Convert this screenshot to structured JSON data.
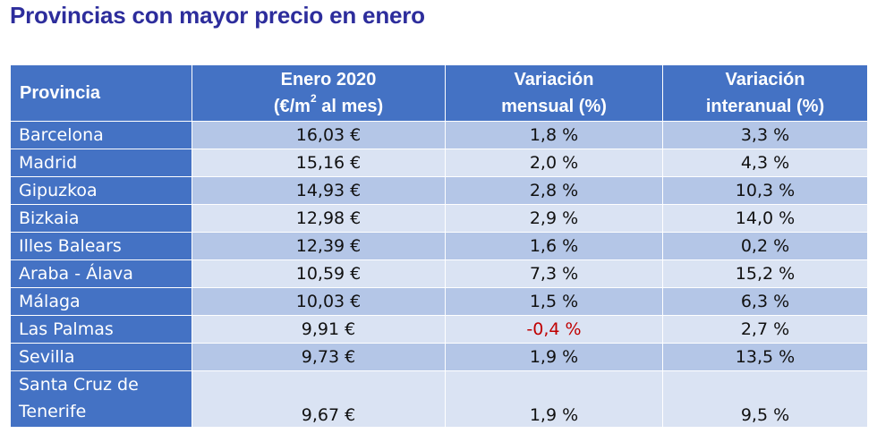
{
  "title": "Provincias con mayor precio en enero",
  "table": {
    "headers": {
      "provincia": "Provincia",
      "enero_line1": "Enero 2020",
      "enero_line2_prefix": "(€/m",
      "enero_line2_sup": "2",
      "enero_line2_suffix": " al mes)",
      "mensual_line1": "Variación",
      "mensual_line2": "mensual (%)",
      "interanual_line1": "Variación",
      "interanual_line2": "interanual (%)"
    },
    "rows": [
      {
        "provincia": "Barcelona",
        "precio": "16,03 €",
        "mensual": "1,8 %",
        "interanual": "3,3 %"
      },
      {
        "provincia": "Madrid",
        "precio": "15,16 €",
        "mensual": "2,0 %",
        "interanual": "4,3 %"
      },
      {
        "provincia": "Gipuzkoa",
        "precio": "14,93 €",
        "mensual": "2,8 %",
        "interanual": "10,3 %"
      },
      {
        "provincia": "Bizkaia",
        "precio": "12,98 €",
        "mensual": "2,9 %",
        "interanual": "14,0 %"
      },
      {
        "provincia": "Illes Balears",
        "precio": "12,39 €",
        "mensual": "1,6 %",
        "interanual": "0,2 %"
      },
      {
        "provincia": "Araba - Álava",
        "precio": "10,59 €",
        "mensual": "7,3 %",
        "interanual": "15,2 %"
      },
      {
        "provincia": "Málaga",
        "precio": "10,03 €",
        "mensual": "1,5 %",
        "interanual": "6,3 %"
      },
      {
        "provincia": "Las Palmas",
        "precio": "9,91 €",
        "mensual": "-0,4 %",
        "interanual": "2,7 %"
      },
      {
        "provincia": "Sevilla",
        "precio": "9,73 €",
        "mensual": "1,9 %",
        "interanual": "13,5 %"
      },
      {
        "provincia_line1": "Santa Cruz de",
        "provincia_line2": "Tenerife",
        "precio": "9,67 €",
        "mensual": "1,9 %",
        "interanual": "9,5 %"
      }
    ]
  },
  "colors": {
    "title": "#2d2d9c",
    "header_bg": "#4472c4",
    "row_dark": "#b4c6e7",
    "row_light": "#dae3f3",
    "negative": "#c00000"
  }
}
